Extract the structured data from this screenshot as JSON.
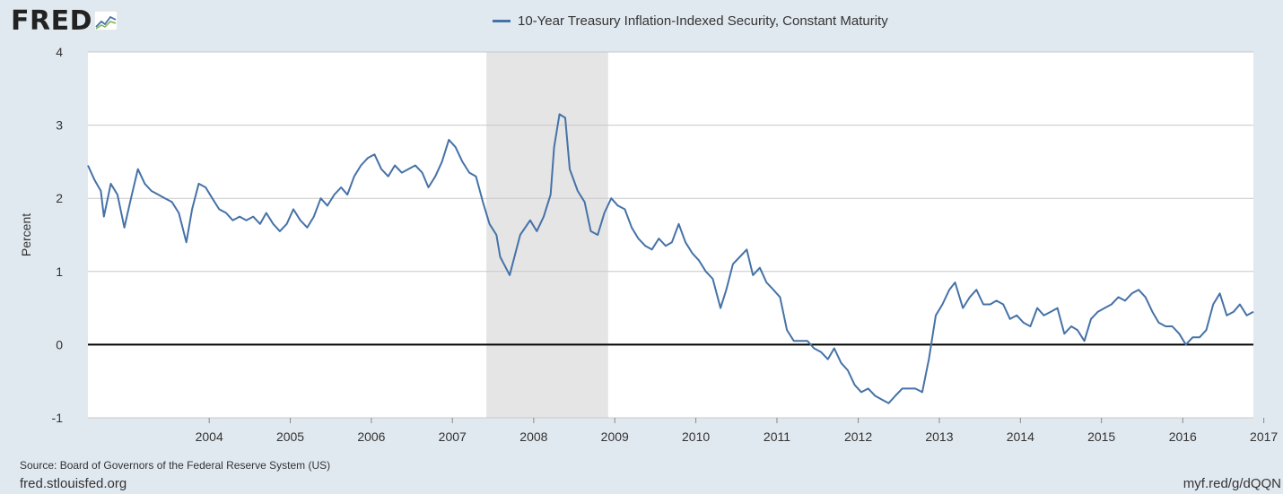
{
  "brand": {
    "name": "FRED",
    "icon": "fred-chart-icon"
  },
  "footer": {
    "source": "Source: Board of Governors of the Federal Reserve System (US)",
    "site": "fred.stlouisfed.org",
    "short_url": "myf.red/g/dQQN"
  },
  "colors": {
    "series": "#4572a7",
    "recession": "#e5e5e5",
    "zero_line": "#000000",
    "grid": "#c8c8c8",
    "background": "#e1e9f0",
    "plot_background": "#ffffff"
  },
  "chart_data": {
    "type": "line",
    "title": "",
    "xlabel": "",
    "ylabel": "Percent",
    "ylim": [
      -1,
      4
    ],
    "yticks": [
      -1,
      0,
      1,
      2,
      3,
      4
    ],
    "xlim": [
      "2003-01-02",
      "2017-05-15"
    ],
    "xticks": [
      "2004",
      "2005",
      "2006",
      "2007",
      "2008",
      "2009",
      "2010",
      "2011",
      "2012",
      "2013",
      "2014",
      "2015",
      "2016",
      "2017"
    ],
    "grid": true,
    "legend": "top-center",
    "reference_line": {
      "y": 0
    },
    "recessions": [
      {
        "start": "2007-12-01",
        "end": "2009-06-01"
      }
    ],
    "series": [
      {
        "name": "10-Year Treasury Inflation-Indexed Security, Constant Maturity",
        "points": [
          [
            "2003-01-02",
            2.45
          ],
          [
            "2003-02-01",
            2.25
          ],
          [
            "2003-03-01",
            2.1
          ],
          [
            "2003-03-15",
            1.75
          ],
          [
            "2003-04-15",
            2.2
          ],
          [
            "2003-05-15",
            2.05
          ],
          [
            "2003-06-15",
            1.6
          ],
          [
            "2003-07-15",
            2.0
          ],
          [
            "2003-08-15",
            2.4
          ],
          [
            "2003-09-15",
            2.2
          ],
          [
            "2003-10-15",
            2.1
          ],
          [
            "2003-11-15",
            2.05
          ],
          [
            "2003-12-15",
            2.0
          ],
          [
            "2004-01-15",
            1.95
          ],
          [
            "2004-02-15",
            1.8
          ],
          [
            "2004-03-20",
            1.4
          ],
          [
            "2004-04-15",
            1.85
          ],
          [
            "2004-05-15",
            2.2
          ],
          [
            "2004-06-15",
            2.15
          ],
          [
            "2004-07-15",
            2.0
          ],
          [
            "2004-08-15",
            1.85
          ],
          [
            "2004-09-15",
            1.8
          ],
          [
            "2004-10-15",
            1.7
          ],
          [
            "2004-11-15",
            1.75
          ],
          [
            "2004-12-15",
            1.7
          ],
          [
            "2005-01-15",
            1.75
          ],
          [
            "2005-02-15",
            1.65
          ],
          [
            "2005-03-15",
            1.8
          ],
          [
            "2005-04-15",
            1.65
          ],
          [
            "2005-05-15",
            1.55
          ],
          [
            "2005-06-15",
            1.65
          ],
          [
            "2005-07-15",
            1.85
          ],
          [
            "2005-08-15",
            1.7
          ],
          [
            "2005-09-15",
            1.6
          ],
          [
            "2005-10-15",
            1.75
          ],
          [
            "2005-11-15",
            2.0
          ],
          [
            "2005-12-15",
            1.9
          ],
          [
            "2006-01-15",
            2.05
          ],
          [
            "2006-02-15",
            2.15
          ],
          [
            "2006-03-15",
            2.05
          ],
          [
            "2006-04-15",
            2.3
          ],
          [
            "2006-05-15",
            2.45
          ],
          [
            "2006-06-15",
            2.55
          ],
          [
            "2006-07-15",
            2.6
          ],
          [
            "2006-08-15",
            2.4
          ],
          [
            "2006-09-15",
            2.3
          ],
          [
            "2006-10-15",
            2.45
          ],
          [
            "2006-11-15",
            2.35
          ],
          [
            "2006-12-15",
            2.4
          ],
          [
            "2007-01-15",
            2.45
          ],
          [
            "2007-02-15",
            2.35
          ],
          [
            "2007-03-15",
            2.15
          ],
          [
            "2007-04-15",
            2.3
          ],
          [
            "2007-05-15",
            2.5
          ],
          [
            "2007-06-15",
            2.8
          ],
          [
            "2007-07-15",
            2.7
          ],
          [
            "2007-08-15",
            2.5
          ],
          [
            "2007-09-15",
            2.35
          ],
          [
            "2007-10-15",
            2.3
          ],
          [
            "2007-11-15",
            1.95
          ],
          [
            "2007-12-15",
            1.65
          ],
          [
            "2008-01-15",
            1.5
          ],
          [
            "2008-02-01",
            1.2
          ],
          [
            "2008-03-15",
            0.95
          ],
          [
            "2008-04-01",
            1.15
          ],
          [
            "2008-05-01",
            1.5
          ],
          [
            "2008-06-15",
            1.7
          ],
          [
            "2008-07-15",
            1.55
          ],
          [
            "2008-08-15",
            1.75
          ],
          [
            "2008-09-15",
            2.05
          ],
          [
            "2008-10-01",
            2.7
          ],
          [
            "2008-10-25",
            3.15
          ],
          [
            "2008-11-20",
            3.1
          ],
          [
            "2008-12-10",
            2.4
          ],
          [
            "2009-01-15",
            2.1
          ],
          [
            "2009-02-15",
            1.95
          ],
          [
            "2009-03-15",
            1.55
          ],
          [
            "2009-04-15",
            1.5
          ],
          [
            "2009-05-15",
            1.8
          ],
          [
            "2009-06-15",
            2.0
          ],
          [
            "2009-07-15",
            1.9
          ],
          [
            "2009-08-15",
            1.85
          ],
          [
            "2009-09-15",
            1.6
          ],
          [
            "2009-10-15",
            1.45
          ],
          [
            "2009-11-15",
            1.35
          ],
          [
            "2009-12-15",
            1.3
          ],
          [
            "2010-01-15",
            1.45
          ],
          [
            "2010-02-15",
            1.35
          ],
          [
            "2010-03-15",
            1.4
          ],
          [
            "2010-04-15",
            1.65
          ],
          [
            "2010-05-15",
            1.4
          ],
          [
            "2010-06-15",
            1.25
          ],
          [
            "2010-07-15",
            1.15
          ],
          [
            "2010-08-15",
            1.0
          ],
          [
            "2010-09-15",
            0.9
          ],
          [
            "2010-10-20",
            0.5
          ],
          [
            "2010-11-15",
            0.75
          ],
          [
            "2010-12-15",
            1.1
          ],
          [
            "2011-01-15",
            1.2
          ],
          [
            "2011-02-15",
            1.3
          ],
          [
            "2011-03-15",
            0.95
          ],
          [
            "2011-04-15",
            1.05
          ],
          [
            "2011-05-15",
            0.85
          ],
          [
            "2011-06-15",
            0.75
          ],
          [
            "2011-07-15",
            0.65
          ],
          [
            "2011-08-15",
            0.2
          ],
          [
            "2011-09-15",
            0.05
          ],
          [
            "2011-10-15",
            0.05
          ],
          [
            "2011-11-15",
            0.05
          ],
          [
            "2011-12-15",
            -0.05
          ],
          [
            "2012-01-15",
            -0.1
          ],
          [
            "2012-02-15",
            -0.2
          ],
          [
            "2012-03-15",
            -0.05
          ],
          [
            "2012-04-15",
            -0.25
          ],
          [
            "2012-05-15",
            -0.35
          ],
          [
            "2012-06-15",
            -0.55
          ],
          [
            "2012-07-15",
            -0.65
          ],
          [
            "2012-08-15",
            -0.6
          ],
          [
            "2012-09-15",
            -0.7
          ],
          [
            "2012-10-15",
            -0.75
          ],
          [
            "2012-11-15",
            -0.8
          ],
          [
            "2012-12-15",
            -0.7
          ],
          [
            "2013-01-15",
            -0.6
          ],
          [
            "2013-02-15",
            -0.6
          ],
          [
            "2013-03-15",
            -0.6
          ],
          [
            "2013-04-15",
            -0.65
          ],
          [
            "2013-05-15",
            -0.2
          ],
          [
            "2013-06-15",
            0.4
          ],
          [
            "2013-07-15",
            0.55
          ],
          [
            "2013-08-15",
            0.75
          ],
          [
            "2013-09-10",
            0.85
          ],
          [
            "2013-10-15",
            0.5
          ],
          [
            "2013-11-15",
            0.65
          ],
          [
            "2013-12-15",
            0.75
          ],
          [
            "2014-01-15",
            0.55
          ],
          [
            "2014-02-15",
            0.55
          ],
          [
            "2014-03-15",
            0.6
          ],
          [
            "2014-04-15",
            0.55
          ],
          [
            "2014-05-15",
            0.35
          ],
          [
            "2014-06-15",
            0.4
          ],
          [
            "2014-07-15",
            0.3
          ],
          [
            "2014-08-15",
            0.25
          ],
          [
            "2014-09-15",
            0.5
          ],
          [
            "2014-10-15",
            0.4
          ],
          [
            "2014-11-15",
            0.45
          ],
          [
            "2014-12-15",
            0.5
          ],
          [
            "2015-01-15",
            0.15
          ],
          [
            "2015-02-15",
            0.25
          ],
          [
            "2015-03-15",
            0.2
          ],
          [
            "2015-04-15",
            0.05
          ],
          [
            "2015-05-15",
            0.35
          ],
          [
            "2015-06-15",
            0.45
          ],
          [
            "2015-07-15",
            0.5
          ],
          [
            "2015-08-15",
            0.55
          ],
          [
            "2015-09-15",
            0.65
          ],
          [
            "2015-10-15",
            0.6
          ],
          [
            "2015-11-15",
            0.7
          ],
          [
            "2015-12-15",
            0.75
          ],
          [
            "2016-01-15",
            0.65
          ],
          [
            "2016-02-15",
            0.45
          ],
          [
            "2016-03-15",
            0.3
          ],
          [
            "2016-04-15",
            0.25
          ],
          [
            "2016-05-15",
            0.25
          ],
          [
            "2016-06-15",
            0.15
          ],
          [
            "2016-07-15",
            0.0
          ],
          [
            "2016-08-15",
            0.1
          ],
          [
            "2016-09-15",
            0.1
          ],
          [
            "2016-10-15",
            0.2
          ],
          [
            "2016-11-15",
            0.55
          ],
          [
            "2016-12-15",
            0.7
          ],
          [
            "2017-01-15",
            0.4
          ],
          [
            "2017-02-15",
            0.45
          ],
          [
            "2017-03-15",
            0.55
          ],
          [
            "2017-04-15",
            0.4
          ],
          [
            "2017-05-15",
            0.45
          ]
        ]
      }
    ]
  }
}
